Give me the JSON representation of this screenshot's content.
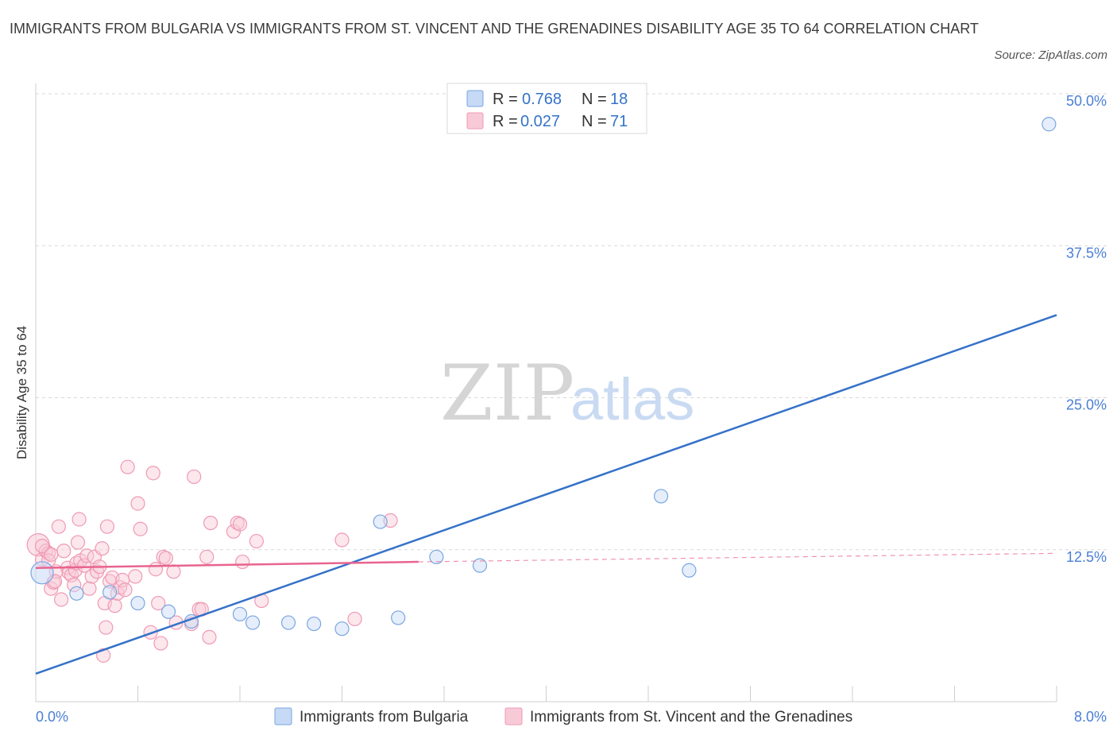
{
  "title": "IMMIGRANTS FROM BULGARIA VS IMMIGRANTS FROM ST. VINCENT AND THE GRENADINES DISABILITY AGE 35 TO 64 CORRELATION CHART",
  "source": "Source: ZipAtlas.com",
  "watermark": {
    "zip": "ZIP",
    "atlas": "atlas"
  },
  "colors": {
    "blue": "#3572c8",
    "blue_fill": "#c6d9f5",
    "blue_stroke": "#7aa6e0",
    "pink": "#e8648e",
    "pink_fill": "#f8cad8",
    "pink_stroke": "#ef9ab5",
    "tick_label": "#4a7fd4",
    "grid": "#d8d8d8"
  },
  "legend": {
    "rows": [
      {
        "r_label": "R = ",
        "r_value": "0.768",
        "n_label": "N = ",
        "n_value": "18"
      },
      {
        "r_label": "R = ",
        "r_value": "0.027",
        "n_label": "N = ",
        "n_value": "71"
      }
    ]
  },
  "chart_data": {
    "type": "scatter",
    "ylabel": "Disability Age 35 to 64",
    "xlim": [
      0.0,
      8.0
    ],
    "ylim": [
      0,
      50
    ],
    "x_tick_labels": [
      "0.0%",
      "8.0%"
    ],
    "y_ticks": [
      12.5,
      25.0,
      37.5,
      50.0
    ],
    "y_tick_labels": [
      "12.5%",
      "25.0%",
      "37.5%",
      "50.0%"
    ],
    "grid": true,
    "legend_position": "top-center",
    "series": [
      {
        "name": "Immigrants from Bulgaria",
        "color": "blue",
        "trend": {
          "x": [
            0.0,
            8.0
          ],
          "y": [
            2.3,
            31.8
          ],
          "dashed_extension": false
        },
        "points": [
          [
            0.05,
            10.6
          ],
          [
            0.32,
            8.9
          ],
          [
            0.58,
            9.0
          ],
          [
            0.8,
            8.1
          ],
          [
            1.04,
            7.4
          ],
          [
            1.22,
            6.6
          ],
          [
            1.6,
            7.2
          ],
          [
            1.7,
            6.5
          ],
          [
            1.98,
            6.5
          ],
          [
            2.18,
            6.4
          ],
          [
            2.4,
            6.0
          ],
          [
            2.7,
            14.8
          ],
          [
            2.84,
            6.9
          ],
          [
            3.14,
            11.9
          ],
          [
            3.48,
            11.2
          ],
          [
            4.9,
            16.9
          ],
          [
            5.12,
            10.8
          ],
          [
            7.94,
            47.5
          ]
        ],
        "large_points": [
          [
            0.05,
            10.6
          ]
        ]
      },
      {
        "name": "Immigrants from St. Vincent and the Grenadines",
        "color": "pink",
        "trend": {
          "x": [
            0.0,
            3.0
          ],
          "y": [
            11.0,
            11.5
          ],
          "dashed_to_x": 8.0,
          "dashed_y_end": 12.2
        },
        "points": [
          [
            0.02,
            12.9
          ],
          [
            0.05,
            11.7
          ],
          [
            0.08,
            12.4
          ],
          [
            0.1,
            12.2
          ],
          [
            0.12,
            9.3
          ],
          [
            0.14,
            9.8
          ],
          [
            0.16,
            10.7
          ],
          [
            0.18,
            14.4
          ],
          [
            0.2,
            8.4
          ],
          [
            0.22,
            12.4
          ],
          [
            0.25,
            11.0
          ],
          [
            0.26,
            10.6
          ],
          [
            0.28,
            10.4
          ],
          [
            0.3,
            9.6
          ],
          [
            0.31,
            10.8
          ],
          [
            0.32,
            11.4
          ],
          [
            0.33,
            13.1
          ],
          [
            0.34,
            15.0
          ],
          [
            0.35,
            11.6
          ],
          [
            0.38,
            11.2
          ],
          [
            0.4,
            12.0
          ],
          [
            0.42,
            9.3
          ],
          [
            0.44,
            10.3
          ],
          [
            0.46,
            11.9
          ],
          [
            0.48,
            10.7
          ],
          [
            0.5,
            11.1
          ],
          [
            0.52,
            12.6
          ],
          [
            0.54,
            8.1
          ],
          [
            0.55,
            6.1
          ],
          [
            0.53,
            3.8
          ],
          [
            0.56,
            14.4
          ],
          [
            0.58,
            9.9
          ],
          [
            0.6,
            10.2
          ],
          [
            0.62,
            7.9
          ],
          [
            0.64,
            8.9
          ],
          [
            0.66,
            9.4
          ],
          [
            0.68,
            10.0
          ],
          [
            0.7,
            9.2
          ],
          [
            0.72,
            19.3
          ],
          [
            0.78,
            10.3
          ],
          [
            0.8,
            16.3
          ],
          [
            0.82,
            14.2
          ],
          [
            0.9,
            5.7
          ],
          [
            0.92,
            18.8
          ],
          [
            0.94,
            10.9
          ],
          [
            0.96,
            8.1
          ],
          [
            0.98,
            4.8
          ],
          [
            1.0,
            11.9
          ],
          [
            1.02,
            11.8
          ],
          [
            1.08,
            10.7
          ],
          [
            1.1,
            6.5
          ],
          [
            1.22,
            6.4
          ],
          [
            1.24,
            18.5
          ],
          [
            1.28,
            7.6
          ],
          [
            1.3,
            7.6
          ],
          [
            1.34,
            11.9
          ],
          [
            1.36,
            5.3
          ],
          [
            1.37,
            14.7
          ],
          [
            1.55,
            14.0
          ],
          [
            1.58,
            14.7
          ],
          [
            1.6,
            14.6
          ],
          [
            1.62,
            11.5
          ],
          [
            1.73,
            13.2
          ],
          [
            1.77,
            8.3
          ],
          [
            2.4,
            13.3
          ],
          [
            2.5,
            6.8
          ],
          [
            2.78,
            14.9
          ],
          [
            0.15,
            9.9
          ],
          [
            0.05,
            12.8
          ],
          [
            0.1,
            11.6
          ],
          [
            0.12,
            12.1
          ]
        ],
        "large_points": [
          [
            0.02,
            12.9
          ]
        ]
      }
    ]
  }
}
